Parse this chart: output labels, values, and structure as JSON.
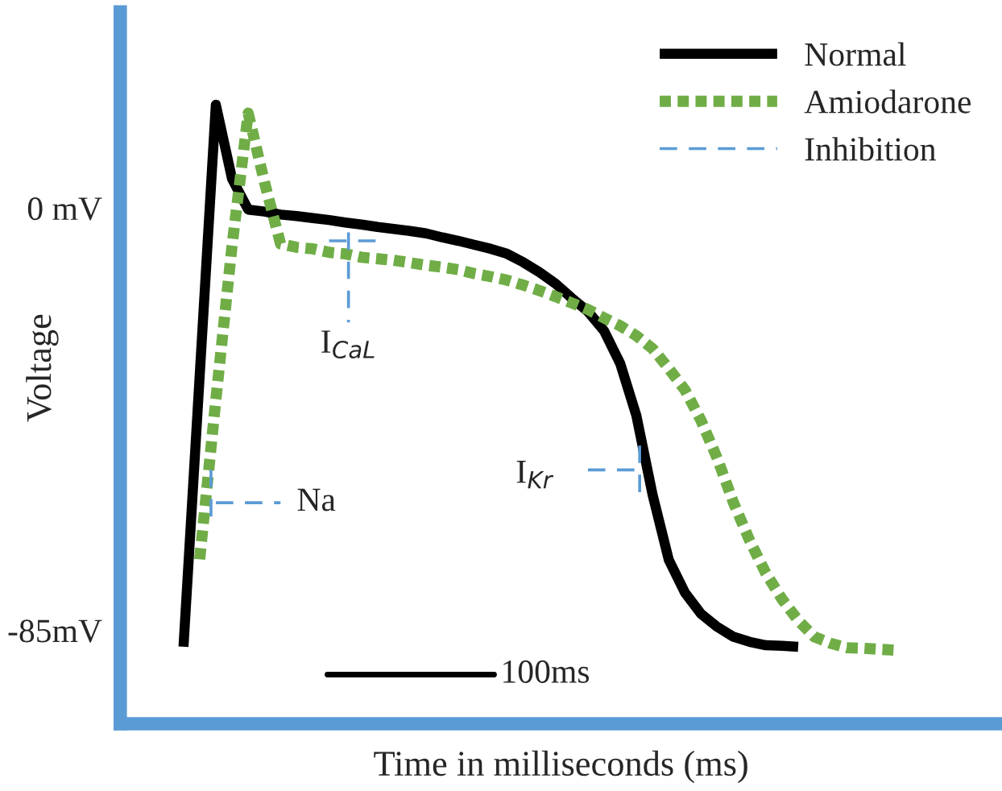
{
  "chart_data": {
    "type": "line",
    "xlabel": "Time in milliseconds (ms)",
    "ylabel": "Voltage",
    "categories": [
      null,
      null,
      null,
      null,
      null,
      null,
      null,
      null,
      null,
      null,
      null,
      null,
      null,
      null,
      null,
      null,
      null,
      null,
      null,
      null,
      null,
      null,
      null,
      null,
      null,
      null,
      null,
      null,
      null,
      null,
      null,
      null,
      null,
      null,
      null,
      null,
      null,
      null,
      null,
      null,
      null,
      null,
      null,
      null,
      null,
      null
    ],
    "ylim": [
      -103.8,
      39.5
    ],
    "yticks": [
      {
        "value": 0,
        "label": "0 mV"
      },
      {
        "value": -85,
        "label": "-85mV"
      }
    ],
    "tick_labels": "y",
    "grid": false,
    "legend": "top right",
    "series": [
      {
        "name": "Normal",
        "color": "#000000",
        "line_style": "solid",
        "values": [
          -88.3,
          -33.8,
          20.8,
          5.9,
          -0.3,
          -0.7,
          -1.3,
          -1.6,
          -2.0,
          -2.4,
          -2.9,
          -3.3,
          -3.8,
          -4.2,
          -4.6,
          -5.1,
          -5.9,
          -6.6,
          -7.4,
          -8.2,
          -9.2,
          -10.9,
          -12.9,
          -15.2,
          -18.1,
          -20.8,
          -24.7,
          -31.3,
          -41.8,
          -57.7,
          -70.8,
          -77.4,
          -81.7,
          -84.3,
          -86.3,
          -87.3,
          -88.0,
          -88.1,
          -88.3,
          null,
          null,
          null,
          null,
          null,
          null,
          null
        ]
      },
      {
        "name": "Amiodarone",
        "color": "#70ad47",
        "line_style": "dotted",
        "values": [
          null,
          -70.7,
          -38.6,
          -7.6,
          19.1,
          5.3,
          -7.2,
          -7.9,
          -8.2,
          -8.9,
          -9.2,
          -9.9,
          -10.2,
          -10.5,
          -11.0,
          -11.5,
          -11.9,
          -12.4,
          -13.2,
          -13.8,
          -14.5,
          -15.5,
          -16.6,
          -17.8,
          -19.1,
          -20.4,
          -22.1,
          -23.7,
          -25.7,
          -28.3,
          -32.3,
          -36.6,
          -42.8,
          -50.4,
          -59.3,
          -66.9,
          -73.5,
          -78.7,
          -83.0,
          -86.3,
          -87.6,
          -88.5,
          -88.6,
          -88.8,
          -89.0,
          null
        ]
      },
      {
        "name": "Inhibition",
        "color": "#5b9bd5",
        "line_style": "dashed",
        "values": [
          null,
          null,
          -59.3,
          -59.3,
          -59.3,
          -59.3,
          -59.3,
          null,
          null,
          -6.6,
          -6.6,
          -6.6,
          -6.6,
          null,
          null,
          null,
          null,
          null,
          null,
          null,
          null,
          null,
          null,
          null,
          null,
          -52.7,
          -52.7,
          -52.7,
          -52.7,
          null,
          null,
          null,
          null,
          null,
          null,
          null,
          null,
          null,
          null,
          null,
          null,
          null,
          null,
          null,
          null,
          null
        ]
      }
    ],
    "annotations": [
      "I$_{CaL}$",
      "I$_{Kr}$",
      "Na",
      "100ms"
    ]
  }
}
